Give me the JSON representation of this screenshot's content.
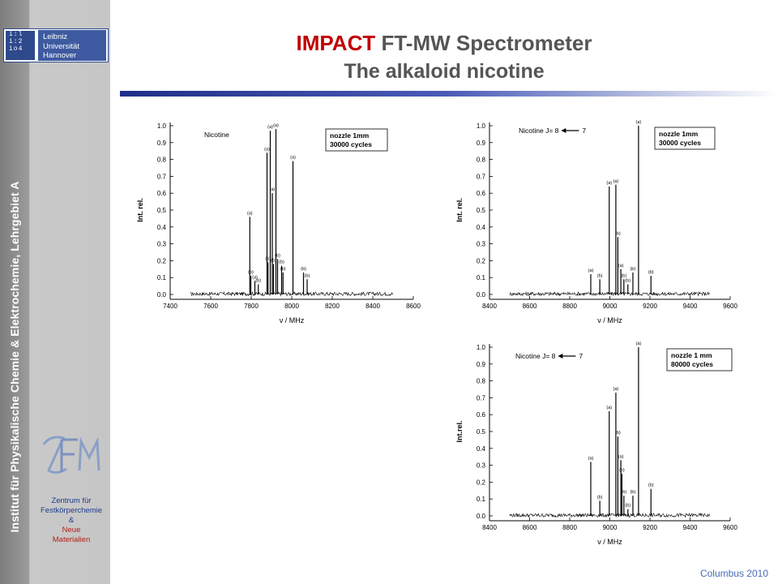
{
  "title": {
    "highlight": "IMPACT",
    "rest": " FT-MW Spectrometer",
    "subtitle": "The alkaloid nicotine"
  },
  "sidebar": {
    "vertical_text": "Institut für Physikalische Chemie & Elektrochemie, Lehrgebiet A",
    "university_logo": {
      "mark_lines": [
        "i:l",
        "i:2",
        "io4"
      ],
      "text_lines": [
        "Leibniz",
        "Universität",
        "Hannover"
      ]
    },
    "center_logo": {
      "lines": [
        "Zentrum für",
        "Festkörperchemie",
        "&",
        "Neue",
        "Materialien"
      ]
    }
  },
  "footer": {
    "text": "Columbus 2010"
  },
  "colors": {
    "title_red": "#c00000",
    "title_gray": "#555555",
    "rule_blue": "#1f2f8a",
    "footer_blue": "#4a6ab8"
  },
  "chart_data": [
    {
      "type": "line",
      "title": "",
      "label": "Nicotine",
      "legend_lines": [
        "nozzle 1mm",
        "30000 cycles"
      ],
      "xlabel": "ν / MHz",
      "ylabel": "Int. rel.",
      "xlim": [
        7400,
        8600
      ],
      "ylim": [
        0.0,
        1.0
      ],
      "data_xlim": [
        7500,
        8500
      ],
      "xticks": [
        7400,
        7600,
        7800,
        8000,
        8200,
        8400,
        8600
      ],
      "yticks": [
        0.0,
        0.1,
        0.2,
        0.3,
        0.4,
        0.5,
        0.6,
        0.7,
        0.8,
        0.9,
        1.0
      ],
      "peaks": [
        {
          "x": 7793,
          "y": 0.46,
          "label": "(a)"
        },
        {
          "x": 7798,
          "y": 0.11,
          "label": "(b)"
        },
        {
          "x": 7818,
          "y": 0.08,
          "label": "(a)"
        },
        {
          "x": 7835,
          "y": 0.06,
          "label": "(b)"
        },
        {
          "x": 7878,
          "y": 0.84,
          "label": "(a)"
        },
        {
          "x": 7883,
          "y": 0.19,
          "label": "(b)"
        },
        {
          "x": 7894,
          "y": 0.97,
          "label": "(a)"
        },
        {
          "x": 7904,
          "y": 0.6,
          "label": "(a)"
        },
        {
          "x": 7910,
          "y": 0.18,
          "label": "(b)"
        },
        {
          "x": 7922,
          "y": 0.98,
          "label": "(a)"
        },
        {
          "x": 7930,
          "y": 0.21,
          "label": "(b)"
        },
        {
          "x": 7950,
          "y": 0.17,
          "label": "(b)"
        },
        {
          "x": 7957,
          "y": 0.13,
          "label": "(b)"
        },
        {
          "x": 8006,
          "y": 0.79,
          "label": "(a)"
        },
        {
          "x": 8058,
          "y": 0.13,
          "label": "(b)"
        },
        {
          "x": 8076,
          "y": 0.09,
          "label": "(b)"
        }
      ]
    },
    {
      "type": "line",
      "title": "",
      "label": "Nicotine J= 8",
      "label_end": "7",
      "legend_lines": [
        "nozzle 1mm",
        "30000 cycles"
      ],
      "xlabel": "ν / MHz",
      "ylabel": "Int. rel.",
      "xlim": [
        8400,
        9600
      ],
      "ylim": [
        0.0,
        1.0
      ],
      "data_xlim": [
        8500,
        9500
      ],
      "xticks": [
        8400,
        8600,
        8800,
        9000,
        9200,
        9400,
        9600
      ],
      "yticks": [
        0.0,
        0.1,
        0.2,
        0.3,
        0.4,
        0.5,
        0.6,
        0.7,
        0.8,
        0.9,
        1.0
      ],
      "peaks": [
        {
          "x": 8905,
          "y": 0.12,
          "label": "(a)"
        },
        {
          "x": 8950,
          "y": 0.09,
          "label": "(b)"
        },
        {
          "x": 8997,
          "y": 0.64,
          "label": "(a)"
        },
        {
          "x": 9030,
          "y": 0.65,
          "label": "(a)"
        },
        {
          "x": 9040,
          "y": 0.34,
          "label": "(b)"
        },
        {
          "x": 9055,
          "y": 0.15,
          "label": "(a)"
        },
        {
          "x": 9070,
          "y": 0.09,
          "label": "(b)"
        },
        {
          "x": 9090,
          "y": 0.06,
          "label": "(b)"
        },
        {
          "x": 9115,
          "y": 0.13,
          "label": "(b)"
        },
        {
          "x": 9143,
          "y": 1.0,
          "label": "(a)"
        },
        {
          "x": 9205,
          "y": 0.11,
          "label": "(b)"
        }
      ]
    },
    {
      "type": "line",
      "title": "",
      "label": "Nicotine J= 8",
      "label_end": "7",
      "legend_lines": [
        "nozzle 1 mm",
        "80000 cycles"
      ],
      "xlabel": "ν / MHz",
      "ylabel": "Int.rel.",
      "xlim": [
        8400,
        9600
      ],
      "ylim": [
        0.0,
        1.0
      ],
      "data_xlim": [
        8500,
        9500
      ],
      "xticks": [
        8400,
        8600,
        8800,
        9000,
        9200,
        9400,
        9600
      ],
      "yticks": [
        0.0,
        0.1,
        0.2,
        0.3,
        0.4,
        0.5,
        0.6,
        0.7,
        0.8,
        0.9,
        1.0
      ],
      "peaks": [
        {
          "x": 8905,
          "y": 0.32,
          "label": "(a)"
        },
        {
          "x": 8950,
          "y": 0.09,
          "label": "(b)"
        },
        {
          "x": 8997,
          "y": 0.62,
          "label": "(a)"
        },
        {
          "x": 9030,
          "y": 0.73,
          "label": "(a)"
        },
        {
          "x": 9040,
          "y": 0.47,
          "label": "(b)"
        },
        {
          "x": 9055,
          "y": 0.33,
          "label": "(a)"
        },
        {
          "x": 9060,
          "y": 0.25,
          "label": "(b)"
        },
        {
          "x": 9070,
          "y": 0.12,
          "label": "(b)"
        },
        {
          "x": 9090,
          "y": 0.04,
          "label": "(b)"
        },
        {
          "x": 9115,
          "y": 0.12,
          "label": "(b)"
        },
        {
          "x": 9143,
          "y": 1.0,
          "label": "(a)"
        },
        {
          "x": 9205,
          "y": 0.16,
          "label": "(b)"
        }
      ]
    }
  ]
}
